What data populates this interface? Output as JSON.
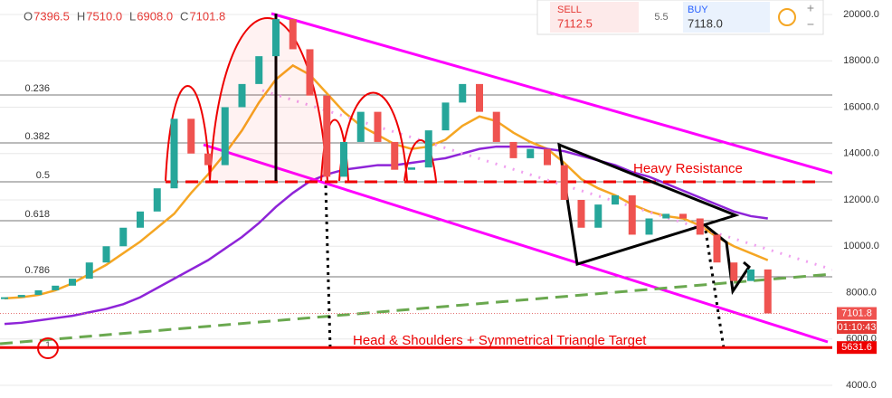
{
  "chart_data": {
    "type": "candlestick",
    "header": [
      {
        "key": "O",
        "value": "7396.5"
      },
      {
        "key": "H",
        "value": "7510.0"
      },
      {
        "key": "L",
        "value": "6908.0"
      },
      {
        "key": "C",
        "value": "7101.8"
      }
    ],
    "ylim": [
      4000,
      20000
    ],
    "yticks": [
      {
        "value": 4000,
        "label": "4000.0"
      },
      {
        "value": 6000,
        "label": "6000.0"
      },
      {
        "value": 8000,
        "label": "8000.0"
      },
      {
        "value": 10000,
        "label": "10000.0"
      },
      {
        "value": 12000,
        "label": "12000.0"
      },
      {
        "value": 14000,
        "label": "14000.0"
      },
      {
        "value": 16000,
        "label": "16000.0"
      },
      {
        "value": 18000,
        "label": "18000.0"
      },
      {
        "value": 20000,
        "label": "20000.0"
      }
    ],
    "series": [
      {
        "color": "#26a69a",
        "values": [
          7800,
          7900,
          8100,
          8300,
          8600,
          9300,
          10000,
          10800,
          11500,
          12500,
          15500,
          14000,
          13500,
          16000,
          17000,
          18200,
          19800,
          18500,
          16500,
          13000,
          14500,
          15800,
          14500,
          13300,
          13400,
          15000,
          16200,
          17000,
          15800,
          14500,
          13800,
          14200,
          13500,
          12000,
          10800,
          11800,
          12200,
          10500,
          11200,
          11400,
          11200,
          10500,
          9300,
          8500,
          9000,
          7101.8
        ]
      },
      {
        "color": "#f5a623",
        "values": [
          7750,
          7800,
          7900,
          8100,
          8400,
          8800,
          9200,
          9700,
          10200,
          10800,
          11400,
          12300,
          13100,
          14000,
          15000,
          16200,
          17200,
          17800,
          17400,
          16600,
          15800,
          15200,
          14800,
          14400,
          14200,
          14300,
          14600,
          15200,
          15600,
          15400,
          14900,
          14500,
          14200,
          13600,
          12900,
          12500,
          12200,
          11800,
          11500,
          11300,
          11200,
          10900,
          10400,
          10000,
          9700,
          9400
        ]
      },
      {
        "color": "#8e24d8",
        "values": [
          6650,
          6700,
          6800,
          6900,
          7000,
          7150,
          7300,
          7500,
          7800,
          8200,
          8600,
          9000,
          9400,
          9900,
          10400,
          11000,
          11700,
          12300,
          12800,
          13100,
          13300,
          13400,
          13500,
          13500,
          13600,
          13700,
          13800,
          14000,
          14200,
          14300,
          14300,
          14300,
          14200,
          14100,
          13900,
          13700,
          13500,
          13200,
          13000,
          12700,
          12400,
          12100,
          11800,
          11500,
          11300,
          11200
        ]
      }
    ],
    "fib_levels": [
      {
        "label": "0.236",
        "value": 16527
      },
      {
        "label": "0.382",
        "value": 14459
      },
      {
        "label": "0.5",
        "value": 12781
      },
      {
        "label": "0.618",
        "value": 11102
      },
      {
        "label": "0.786",
        "value": 8684
      },
      {
        "label": "1",
        "value": 5717
      }
    ],
    "target": {
      "value": 5631.6,
      "label": "5631.6"
    },
    "timer": "01:10:43",
    "annotations": [
      "Heavy Resistance",
      "Head & Shoulders + Symmetrical Triangle Target"
    ],
    "ticket": {
      "sell_label": "SELL",
      "sell_price": "7112.5",
      "spread": "5.5",
      "buy_label": "BUY",
      "buy_price": "7118.0"
    }
  }
}
